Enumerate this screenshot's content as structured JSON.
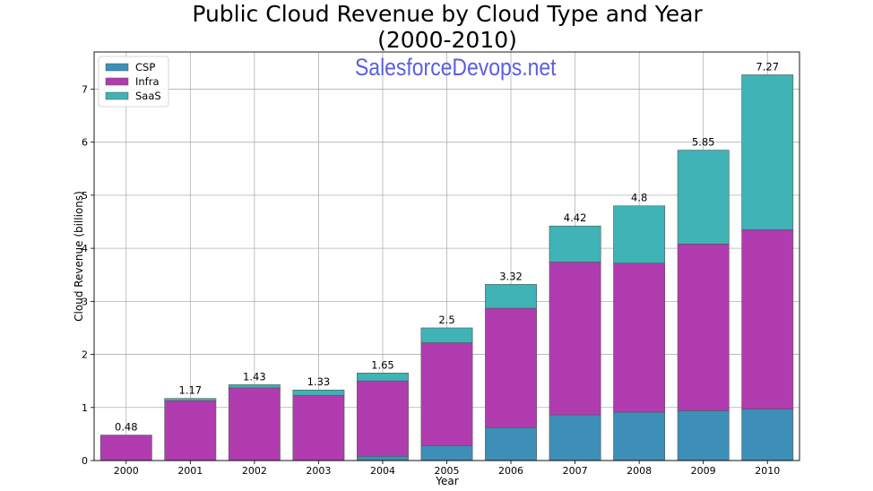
{
  "chart_data": {
    "type": "bar",
    "stacked": true,
    "title": "Public Cloud Revenue by Cloud Type and Year",
    "subtitle": "(2000-2010)",
    "xlabel": "Year",
    "ylabel": "Cloud Revenue (billions)",
    "ylim": [
      0,
      7.7
    ],
    "yticks": [
      0,
      1,
      2,
      3,
      4,
      5,
      6,
      7
    ],
    "grid": true,
    "legend_position": "top-left",
    "watermark": "SalesforceDevops.net",
    "categories": [
      "2000",
      "2001",
      "2002",
      "2003",
      "2004",
      "2005",
      "2006",
      "2007",
      "2008",
      "2009",
      "2010"
    ],
    "series": [
      {
        "name": "CSP",
        "color": "#3d8fb8",
        "values": [
          0,
          0,
          0,
          0,
          0.08,
          0.28,
          0.62,
          0.86,
          0.91,
          0.94,
          0.97
        ]
      },
      {
        "name": "Infra",
        "color": "#b03cb0",
        "values": [
          0.48,
          1.13,
          1.37,
          1.23,
          1.42,
          1.94,
          2.25,
          2.88,
          2.81,
          3.14,
          3.38
        ]
      },
      {
        "name": "SaaS",
        "color": "#3fb3b5",
        "values": [
          0,
          0.04,
          0.06,
          0.1,
          0.15,
          0.28,
          0.45,
          0.68,
          1.08,
          1.77,
          2.92
        ]
      }
    ],
    "totals": [
      "0.48",
      "1.17",
      "1.43",
      "1.33",
      "1.65",
      "2.5",
      "3.32",
      "4.42",
      "4.8",
      "5.85",
      "7.27"
    ]
  }
}
